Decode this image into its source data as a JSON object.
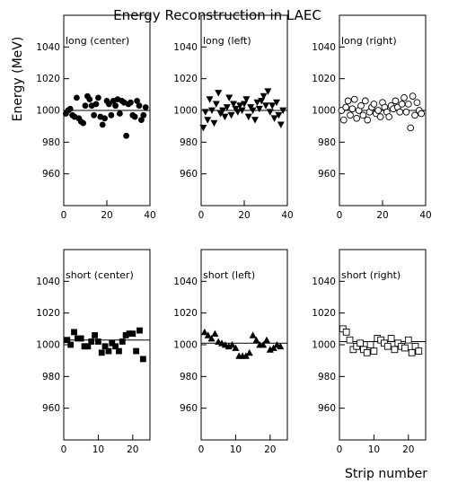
{
  "figure": {
    "title": "Energy Reconstruction in LAEC",
    "ylabel": "Energy (MeV)",
    "xlabel": "Strip number"
  },
  "chart_data": [
    {
      "type": "scatter",
      "title": "long (center)",
      "marker": "filled-circle",
      "xlim": [
        0,
        40
      ],
      "ylim": [
        940,
        1060
      ],
      "xticks": [
        0,
        20,
        40
      ],
      "yticks": [
        960,
        980,
        1000,
        1020,
        1040
      ],
      "reference_line": 1000,
      "x": [
        1,
        2,
        3,
        4,
        5,
        6,
        7,
        8,
        9,
        10,
        11,
        12,
        13,
        14,
        15,
        16,
        17,
        18,
        19,
        20,
        21,
        22,
        23,
        24,
        25,
        26,
        27,
        28,
        29,
        30,
        31,
        32,
        33,
        34,
        35,
        36,
        37,
        38
      ],
      "y": [
        998,
        1000,
        1001,
        997,
        996,
        1008,
        995,
        993,
        992,
        1003,
        1009,
        1007,
        1003,
        997,
        1004,
        1008,
        996,
        991,
        995,
        1006,
        1004,
        997,
        1006,
        1003,
        1007,
        998,
        1006,
        1005,
        984,
        1004,
        1005,
        997,
        996,
        1006,
        1003,
        994,
        997,
        1002
      ]
    },
    {
      "type": "scatter",
      "title": "long (left)",
      "marker": "filled-triangle-down",
      "xlim": [
        0,
        40
      ],
      "ylim": [
        940,
        1060
      ],
      "xticks": [
        0,
        20,
        40
      ],
      "yticks": [
        960,
        980,
        1000,
        1020,
        1040
      ],
      "reference_line": 1000,
      "x": [
        1,
        2,
        3,
        4,
        5,
        6,
        7,
        8,
        9,
        10,
        11,
        12,
        13,
        14,
        15,
        16,
        17,
        18,
        19,
        20,
        21,
        22,
        23,
        24,
        25,
        26,
        27,
        28,
        29,
        30,
        31,
        32,
        33,
        34,
        35,
        36,
        37,
        38
      ],
      "y": [
        989,
        999,
        994,
        1007,
        1000,
        992,
        1004,
        1011,
        998,
        1000,
        996,
        1002,
        1008,
        997,
        1004,
        1001,
        999,
        1003,
        1000,
        1004,
        1007,
        996,
        1002,
        1000,
        994,
        1005,
        1001,
        1006,
        1009,
        1003,
        1012,
        999,
        1003,
        995,
        1005,
        997,
        991,
        1000
      ]
    },
    {
      "type": "scatter",
      "title": "long (right)",
      "marker": "open-circle",
      "xlim": [
        0,
        40
      ],
      "ylim": [
        940,
        1060
      ],
      "xticks": [
        0,
        20,
        40
      ],
      "yticks": [
        960,
        980,
        1000,
        1020,
        1040
      ],
      "reference_line": 1000,
      "x": [
        1,
        2,
        3,
        4,
        5,
        6,
        7,
        8,
        9,
        10,
        11,
        12,
        13,
        14,
        15,
        16,
        17,
        18,
        19,
        20,
        21,
        22,
        23,
        24,
        25,
        26,
        27,
        28,
        29,
        30,
        31,
        32,
        33,
        34,
        35,
        36,
        37,
        38
      ],
      "y": [
        1000,
        994,
        1002,
        1006,
        997,
        1001,
        1007,
        995,
        1000,
        1003,
        997,
        1006,
        994,
        999,
        1002,
        1004,
        998,
        1000,
        996,
        1005,
        1002,
        999,
        996,
        1003,
        1001,
        1006,
        1002,
        999,
        1004,
        1008,
        999,
        1004,
        989,
        1009,
        997,
        1005,
        1000,
        998
      ]
    },
    {
      "type": "scatter",
      "title": "short (center)",
      "marker": "filled-square",
      "xlim": [
        0,
        25
      ],
      "ylim": [
        940,
        1060
      ],
      "xticks": [
        0,
        10,
        20
      ],
      "yticks": [
        960,
        980,
        1000,
        1020,
        1040
      ],
      "reference_line": 1003,
      "x": [
        1,
        2,
        3,
        4,
        5,
        6,
        7,
        8,
        9,
        10,
        11,
        12,
        13,
        14,
        15,
        16,
        17,
        18,
        19,
        20,
        21,
        22,
        23
      ],
      "y": [
        1003,
        1000,
        1008,
        1004,
        1004,
        999,
        999,
        1002,
        1006,
        1002,
        995,
        999,
        996,
        1001,
        999,
        996,
        1002,
        1006,
        1007,
        1007,
        996,
        1009,
        991
      ]
    },
    {
      "type": "scatter",
      "title": "short (left)",
      "marker": "filled-triangle-up",
      "xlim": [
        0,
        25
      ],
      "ylim": [
        940,
        1060
      ],
      "xticks": [
        0,
        10,
        20
      ],
      "yticks": [
        960,
        980,
        1000,
        1020,
        1040
      ],
      "reference_line": 1001,
      "x": [
        1,
        2,
        3,
        4,
        5,
        6,
        7,
        8,
        9,
        10,
        11,
        12,
        13,
        14,
        15,
        16,
        17,
        18,
        19,
        20,
        21,
        22,
        23
      ],
      "y": [
        1008,
        1006,
        1004,
        1007,
        1002,
        1001,
        1000,
        999,
        1000,
        998,
        993,
        993,
        993,
        995,
        1006,
        1003,
        1000,
        1000,
        1003,
        997,
        998,
        1000,
        999
      ]
    },
    {
      "type": "scatter",
      "title": "short (right)",
      "marker": "open-square",
      "xlim": [
        0,
        25
      ],
      "ylim": [
        940,
        1060
      ],
      "xticks": [
        0,
        10,
        20
      ],
      "yticks": [
        960,
        980,
        1000,
        1020,
        1040
      ],
      "reference_line": 1002,
      "x": [
        1,
        2,
        3,
        4,
        5,
        6,
        7,
        8,
        9,
        10,
        11,
        12,
        13,
        14,
        15,
        16,
        17,
        18,
        19,
        20,
        21,
        22,
        23
      ],
      "y": [
        1010,
        1008,
        1003,
        997,
        999,
        1001,
        997,
        995,
        1000,
        996,
        1004,
        1003,
        1001,
        999,
        1004,
        997,
        1001,
        999,
        998,
        1003,
        995,
        999,
        996
      ]
    }
  ]
}
